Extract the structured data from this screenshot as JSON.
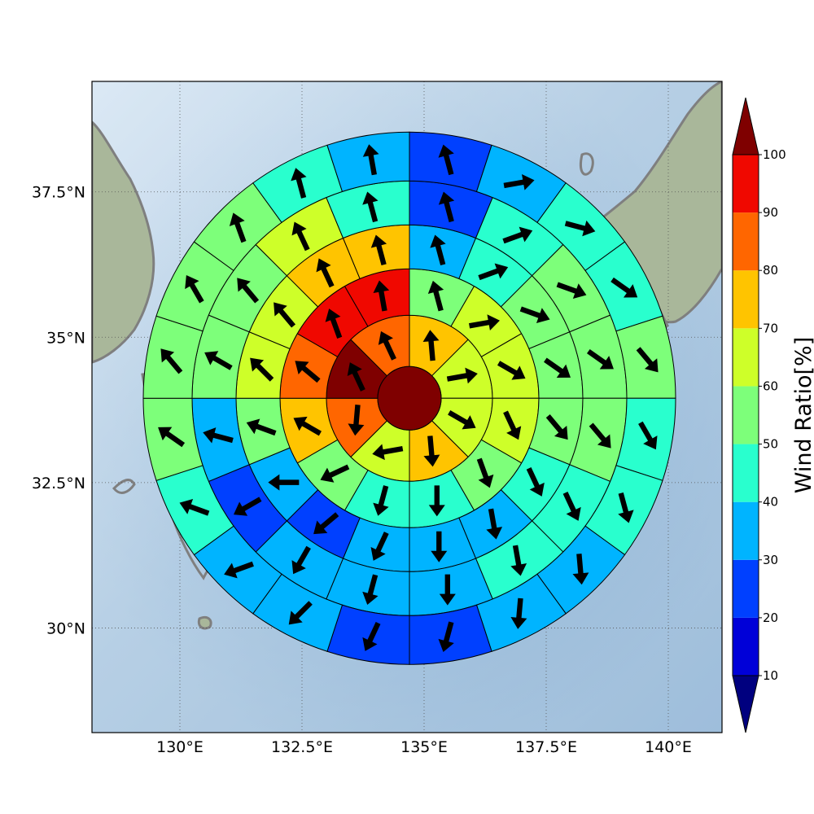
{
  "chart_data": {
    "type": "heatmap",
    "title": "",
    "projection": "polar wind-ratio map",
    "extent": {
      "lon": [
        128.2,
        141.1
      ],
      "lat": [
        28.2,
        39.4
      ]
    },
    "xticks": [
      {
        "value": 130,
        "label": "130°E"
      },
      {
        "value": 132.5,
        "label": "132.5°E"
      },
      {
        "value": 135,
        "label": "135°E"
      },
      {
        "value": 137.5,
        "label": "137.5°E"
      },
      {
        "value": 140,
        "label": "140°E"
      }
    ],
    "yticks": [
      {
        "value": 30,
        "label": "30°N"
      },
      {
        "value": 32.5,
        "label": "32.5°N"
      },
      {
        "value": 35,
        "label": "35°N"
      },
      {
        "value": 37.5,
        "label": "37.5°N"
      }
    ],
    "grid": true,
    "center": {
      "lon": 134.7,
      "lat": 33.95
    },
    "ring_radii_deg": [
      0.65,
      1.7,
      2.65,
      3.55,
      4.45,
      5.45
    ],
    "center_value": 100,
    "rings": [
      {
        "sectors": 8,
        "values": [
          75,
          65,
          65,
          75,
          65,
          85,
          100,
          85
        ],
        "wind_dir_deg": [
          355,
          80,
          120,
          175,
          260,
          185,
          335,
          335
        ]
      },
      {
        "sectors": 12,
        "values": [
          55,
          65,
          65,
          65,
          55,
          45,
          45,
          55,
          75,
          85,
          95,
          95
        ],
        "wind_dir_deg": [
          345,
          80,
          120,
          155,
          160,
          180,
          195,
          245,
          300,
          310,
          340,
          350
        ]
      },
      {
        "sectors": 16,
        "values": [
          35,
          45,
          55,
          55,
          55,
          45,
          35,
          35,
          35,
          25,
          35,
          55,
          65,
          65,
          75,
          75
        ],
        "wind_dir_deg": [
          345,
          70,
          110,
          125,
          140,
          155,
          170,
          180,
          205,
          230,
          270,
          290,
          315,
          320,
          335,
          345
        ],
        "sector_offset_deg": 0
      },
      {
        "sectors": 16,
        "values": [
          25,
          45,
          55,
          55,
          55,
          45,
          45,
          35,
          35,
          35,
          25,
          35,
          55,
          55,
          65,
          45
        ],
        "wind_dir_deg": [
          345,
          70,
          110,
          125,
          140,
          155,
          170,
          180,
          195,
          210,
          240,
          285,
          300,
          320,
          335,
          345
        ],
        "sector_offset_deg": 0
      },
      {
        "sectors": 20,
        "values": [
          25,
          35,
          45,
          45,
          55,
          45,
          45,
          35,
          35,
          25,
          25,
          35,
          35,
          45,
          55,
          55,
          55,
          55,
          45,
          35
        ],
        "wind_dir_deg": [
          345,
          80,
          105,
          125,
          140,
          150,
          165,
          175,
          185,
          195,
          205,
          225,
          250,
          290,
          305,
          320,
          330,
          340,
          345,
          350
        ],
        "sector_offset_deg": 0
      }
    ],
    "colorbar": {
      "label": "Wind Ratio[%]",
      "ticks": [
        10,
        20,
        30,
        40,
        50,
        60,
        70,
        80,
        90,
        100
      ],
      "extend": "both",
      "colors": [
        "#00007f",
        "#0000d8",
        "#0040ff",
        "#00b4ff",
        "#29ffce",
        "#7dff7a",
        "#ceff29",
        "#ffc400",
        "#ff6600",
        "#f00800",
        "#7f0000"
      ]
    }
  }
}
